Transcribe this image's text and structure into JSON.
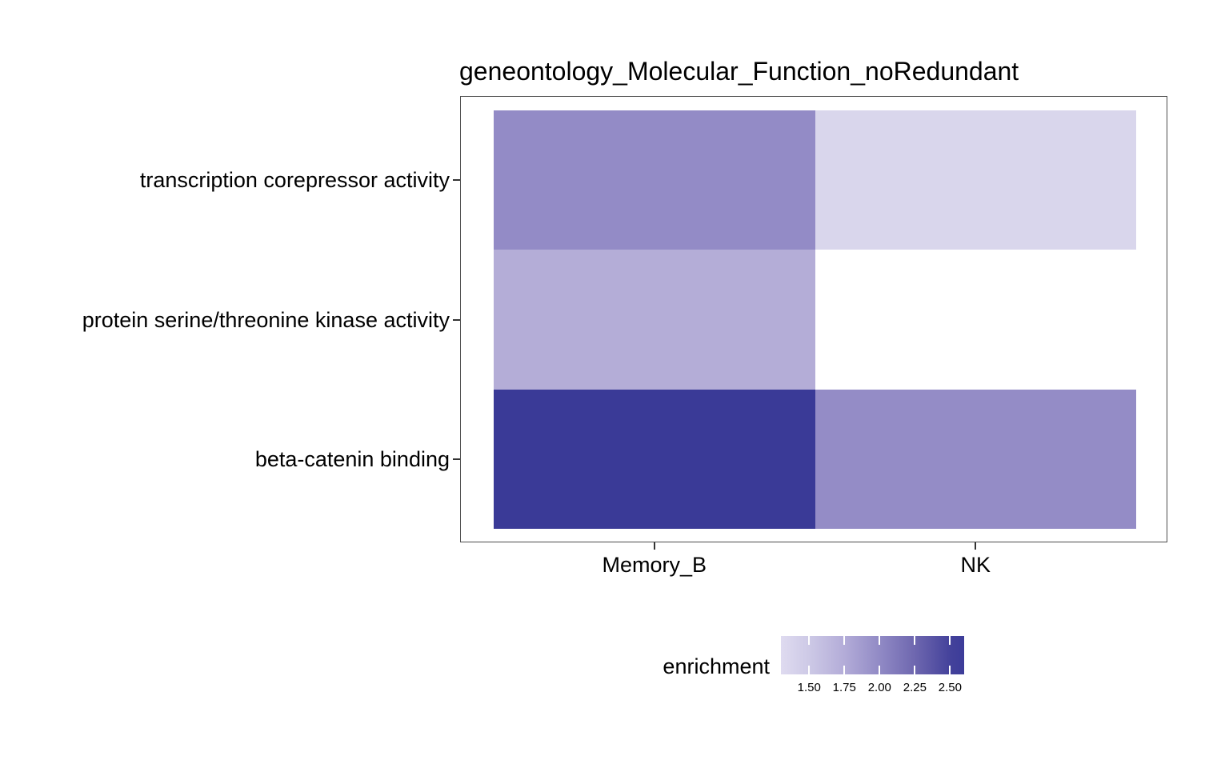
{
  "title": "geneontology_Molecular_Function_noRedundant",
  "chart_data": {
    "type": "heatmap",
    "x_categories": [
      "Memory_B",
      "NK"
    ],
    "y_categories": [
      "transcription corepressor activity",
      "protein serine/threonine kinase activity",
      "beta-catenin binding"
    ],
    "values": [
      [
        2.0,
        1.37
      ],
      [
        1.75,
        null
      ],
      [
        2.6,
        2.0
      ]
    ],
    "cell_colors": [
      [
        "#938bc6",
        "#d9d6ec"
      ],
      [
        "#b4add7",
        null
      ],
      [
        "#3a3a97",
        "#948cc6"
      ]
    ],
    "na_color": "#ffffff",
    "legend": {
      "title": "enrichment",
      "position": "bottom",
      "range": [
        1.3,
        2.6
      ],
      "tick_values": [
        1.5,
        1.75,
        2.0,
        2.25,
        2.5
      ],
      "tick_labels": [
        "1.50",
        "1.75",
        "2.00",
        "2.25",
        "2.50"
      ],
      "gradient_stops": [
        {
          "value": 1.3,
          "color": "#dfdbf0"
        },
        {
          "value": 1.5,
          "color": "#cdc9e6"
        },
        {
          "value": 1.75,
          "color": "#b3acd8"
        },
        {
          "value": 2.0,
          "color": "#918ac5"
        },
        {
          "value": 2.25,
          "color": "#6e67af"
        },
        {
          "value": 2.5,
          "color": "#44429b"
        },
        {
          "value": 2.6,
          "color": "#3c3c99"
        }
      ]
    },
    "layout": {
      "grid": false,
      "panel_border_color": "#4d4d4d",
      "tick_color": "#333333",
      "text_color": "#000000",
      "background": "#ffffff"
    }
  }
}
